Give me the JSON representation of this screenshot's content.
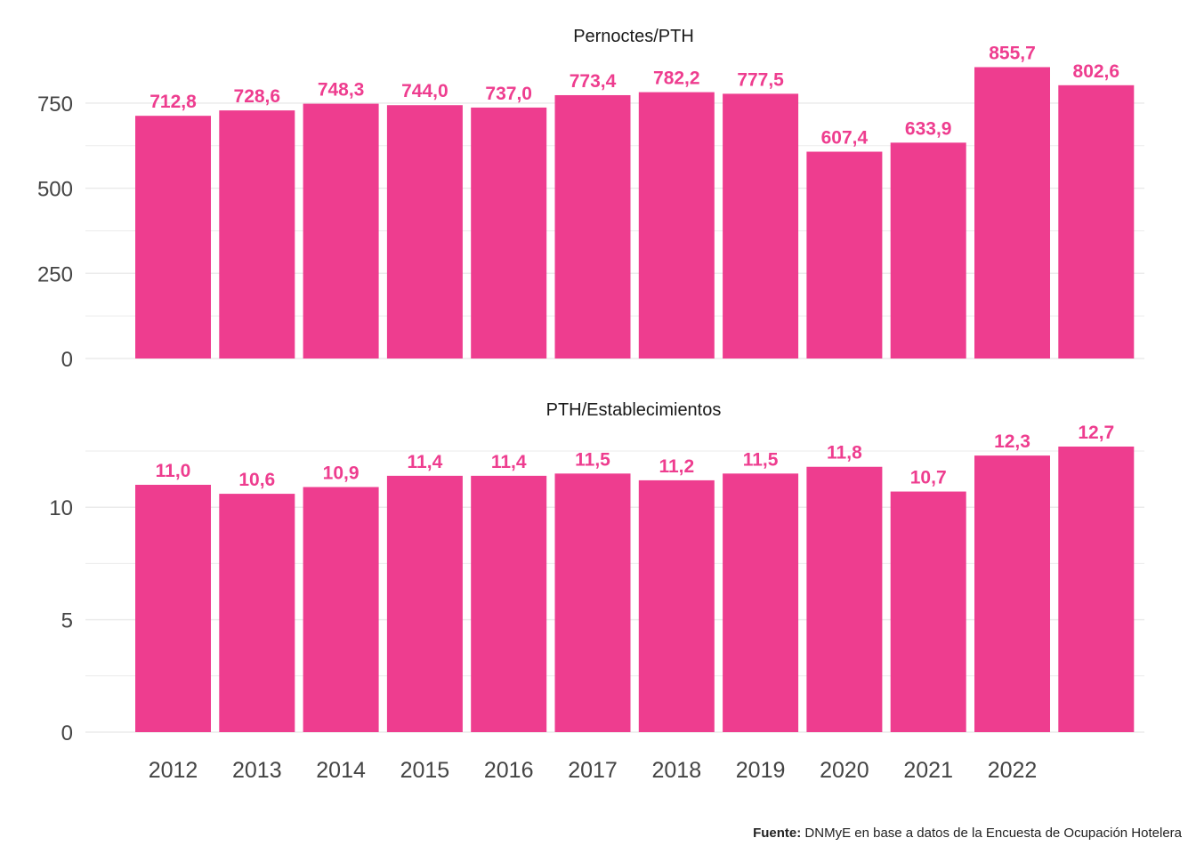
{
  "chart_data": [
    {
      "type": "bar",
      "title": "Pernoctes/PTH",
      "categories": [
        "2012",
        "2013",
        "2014",
        "2015",
        "2016",
        "2017",
        "2018",
        "2019",
        "2020",
        "2021",
        "2022",
        ""
      ],
      "values": [
        712.8,
        728.6,
        748.3,
        744.0,
        737.0,
        773.4,
        782.2,
        777.5,
        607.4,
        633.9,
        855.7,
        802.6
      ],
      "data_labels": [
        "712,8",
        "728,6",
        "748,3",
        "744,0",
        "737,0",
        "773,4",
        "782,2",
        "777,5",
        "607,4",
        "633,9",
        "855,7",
        "802,6"
      ],
      "ylim": [
        0,
        870
      ],
      "yticks": [
        0,
        250,
        500,
        750
      ],
      "ytick_labels": [
        "0",
        "250",
        "500",
        "750"
      ],
      "grid": true
    },
    {
      "type": "bar",
      "title": "PTH/Establecimientos",
      "categories": [
        "2012",
        "2013",
        "2014",
        "2015",
        "2016",
        "2017",
        "2018",
        "2019",
        "2020",
        "2021",
        "2022",
        ""
      ],
      "values": [
        11.0,
        10.6,
        10.9,
        11.4,
        11.4,
        11.5,
        11.2,
        11.5,
        11.8,
        10.7,
        12.3,
        12.7
      ],
      "data_labels": [
        "11,0",
        "10,6",
        "10,9",
        "11,4",
        "11,4",
        "11,5",
        "11,2",
        "11,5",
        "11,8",
        "10,7",
        "12,3",
        "12,7"
      ],
      "ylim": [
        0,
        12.7
      ],
      "yticks": [
        0,
        5,
        10
      ],
      "ytick_labels": [
        "0",
        "5",
        "10"
      ],
      "grid": true
    }
  ],
  "colors": {
    "bar": "#EE3D8F",
    "label": "#EE3D8F",
    "grid": "#EBEBEB",
    "tick_text": "#444444"
  },
  "source": {
    "label": "Fuente:",
    "text": " DNMyE en base a datos de la Encuesta de Ocupación Hotelera"
  }
}
